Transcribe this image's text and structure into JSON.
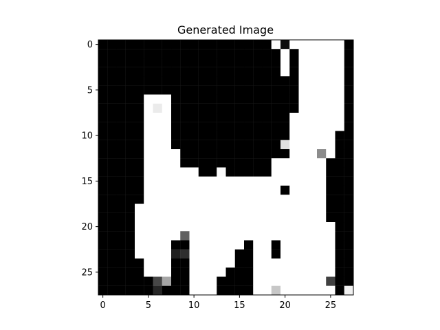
{
  "chart_data": {
    "type": "heatmap",
    "title": "Generated Image",
    "xlabel": "",
    "ylabel": "",
    "colormap": "gray_r",
    "value_range": [
      0,
      1
    ],
    "grid": false,
    "x_ticks": [
      0,
      5,
      10,
      15,
      20,
      25
    ],
    "y_ticks": [
      0,
      5,
      10,
      15,
      20,
      25
    ],
    "x_tick_labels": [
      "0",
      "5",
      "10",
      "15",
      "20",
      "25"
    ],
    "y_tick_labels": [
      "0",
      "5",
      "10",
      "15",
      "20",
      "25"
    ],
    "rows": 28,
    "cols": 28,
    "matrix": [
      "1111111111111111111000000001",
      "1111111111111111111101000001",
      "1111111111111111111101000001",
      "1111111111111111111101000001",
      "1111111111111111111111000001",
      "1111111111111111111111000001",
      "1111100011111111111111000001",
      "1111100011111111111111000001",
      "1111100011111111111110000001",
      "1111100011111111111110000001",
      "1111100011111111111110000011",
      "1111100011111111111110000011",
      "1111100001111111111110000011",
      "1111100001111111111000000111",
      "1111100000011111111000000111",
      "1111100000000000000000000111",
      "1111100000000000000010000111",
      "1111100000000000000000000111",
      "1111000000000000000000000111",
      "1111000000000000000000000111",
      "1111000000000000000000000011",
      "1111000000000000000000000011",
      "1111000011000000100100000011",
      "1111000011000001100100000011",
      "1111100011000001100000000011",
      "1111100011000011100000000011",
      "1111110111000111100000000011",
      "1111111111000111100000000011"
    ],
    "matrix_adjustments": [
      {
        "row": 0,
        "col": 20,
        "value": 0.95
      },
      {
        "row": 7,
        "col": 6,
        "value": 0.08
      },
      {
        "row": 11,
        "col": 20,
        "value": 0.12
      },
      {
        "row": 12,
        "col": 24,
        "value": 0.45
      },
      {
        "row": 14,
        "col": 13,
        "value": 0.02
      },
      {
        "row": 21,
        "col": 9,
        "value": 0.62
      },
      {
        "row": 23,
        "col": 8,
        "value": 0.88
      },
      {
        "row": 23,
        "col": 9,
        "value": 0.82
      },
      {
        "row": 26,
        "col": 6,
        "value": 0.72
      },
      {
        "row": 27,
        "col": 6,
        "value": 0.85
      },
      {
        "row": 26,
        "col": 7,
        "value": 0.35
      },
      {
        "row": 27,
        "col": 19,
        "value": 0.22
      },
      {
        "row": 26,
        "col": 25,
        "value": 0.75
      },
      {
        "row": 27,
        "col": 27,
        "value": 0.06
      }
    ]
  }
}
